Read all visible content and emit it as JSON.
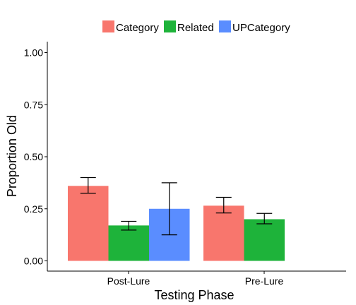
{
  "chart_data": {
    "type": "bar",
    "categories": [
      "Post-Lure",
      "Pre-Lure"
    ],
    "series": [
      {
        "name": "Category",
        "color": "#F8766D",
        "values": [
          0.36,
          0.265
        ],
        "error_low": [
          0.325,
          0.23
        ],
        "error_high": [
          0.4,
          0.305
        ]
      },
      {
        "name": "Related",
        "color": "#1EB33A",
        "values": [
          0.17,
          0.2
        ],
        "error_low": [
          0.148,
          0.178
        ],
        "error_high": [
          0.19,
          0.228
        ]
      },
      {
        "name": "UPCategory",
        "color": "#5A8DFF",
        "values": [
          0.25,
          null
        ],
        "error_low": [
          0.125,
          null
        ],
        "error_high": [
          0.375,
          null
        ]
      }
    ],
    "xlabel": "Testing Phase",
    "ylabel": "Proportion Old",
    "ylim": [
      0,
      1.0
    ],
    "yticks": [
      "0.00",
      "0.25",
      "0.50",
      "0.75",
      "1.00"
    ],
    "legend_position": "top",
    "grid": false
  }
}
